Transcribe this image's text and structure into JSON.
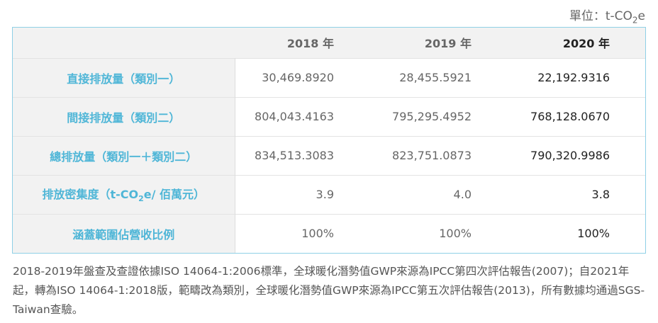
{
  "unit": {
    "prefix": "單位：t-CO",
    "sub": "2",
    "suffix": "e"
  },
  "table": {
    "headers": [
      "",
      "2018 年",
      "2019 年",
      "2020 年"
    ],
    "rows": [
      {
        "label": "直接排放量（類別一）",
        "values": [
          "30,469.8920",
          "28,455.5921",
          "22,192.9316"
        ]
      },
      {
        "label": "間接排放量（類別二）",
        "values": [
          "804,043.4163",
          "795,295.4952",
          "768,128.0670"
        ]
      },
      {
        "label": "總排放量（類別一＋類別二）",
        "values": [
          "834,513.3083",
          "823,751.0873",
          "790,320.9986"
        ]
      },
      {
        "label_prefix": "排放密集度（t-CO",
        "label_sub": "2",
        "label_suffix": "e/ 佰萬元）",
        "values": [
          "3.9",
          "4.0",
          "3.8"
        ]
      },
      {
        "label": "涵蓋範圍佔營收比例",
        "values": [
          "100%",
          "100%",
          "100%"
        ]
      }
    ]
  },
  "note": "2018-2019年盤查及查證依據ISO 14064-1:2006標準，全球暖化潛勢值GWP來源為IPCC第四次評估報告(2007)；自2021年起，轉為ISO 14064-1:2018版，範疇改為類別，全球暖化潛勢值GWP來源為IPCC第五次評估報告(2013)，所有數據均通過SGS-Taiwan查驗。",
  "colors": {
    "label_blue": "#4fb6d7",
    "border_blue": "#8fd0e6",
    "header_bg": "#f2f2f2"
  }
}
